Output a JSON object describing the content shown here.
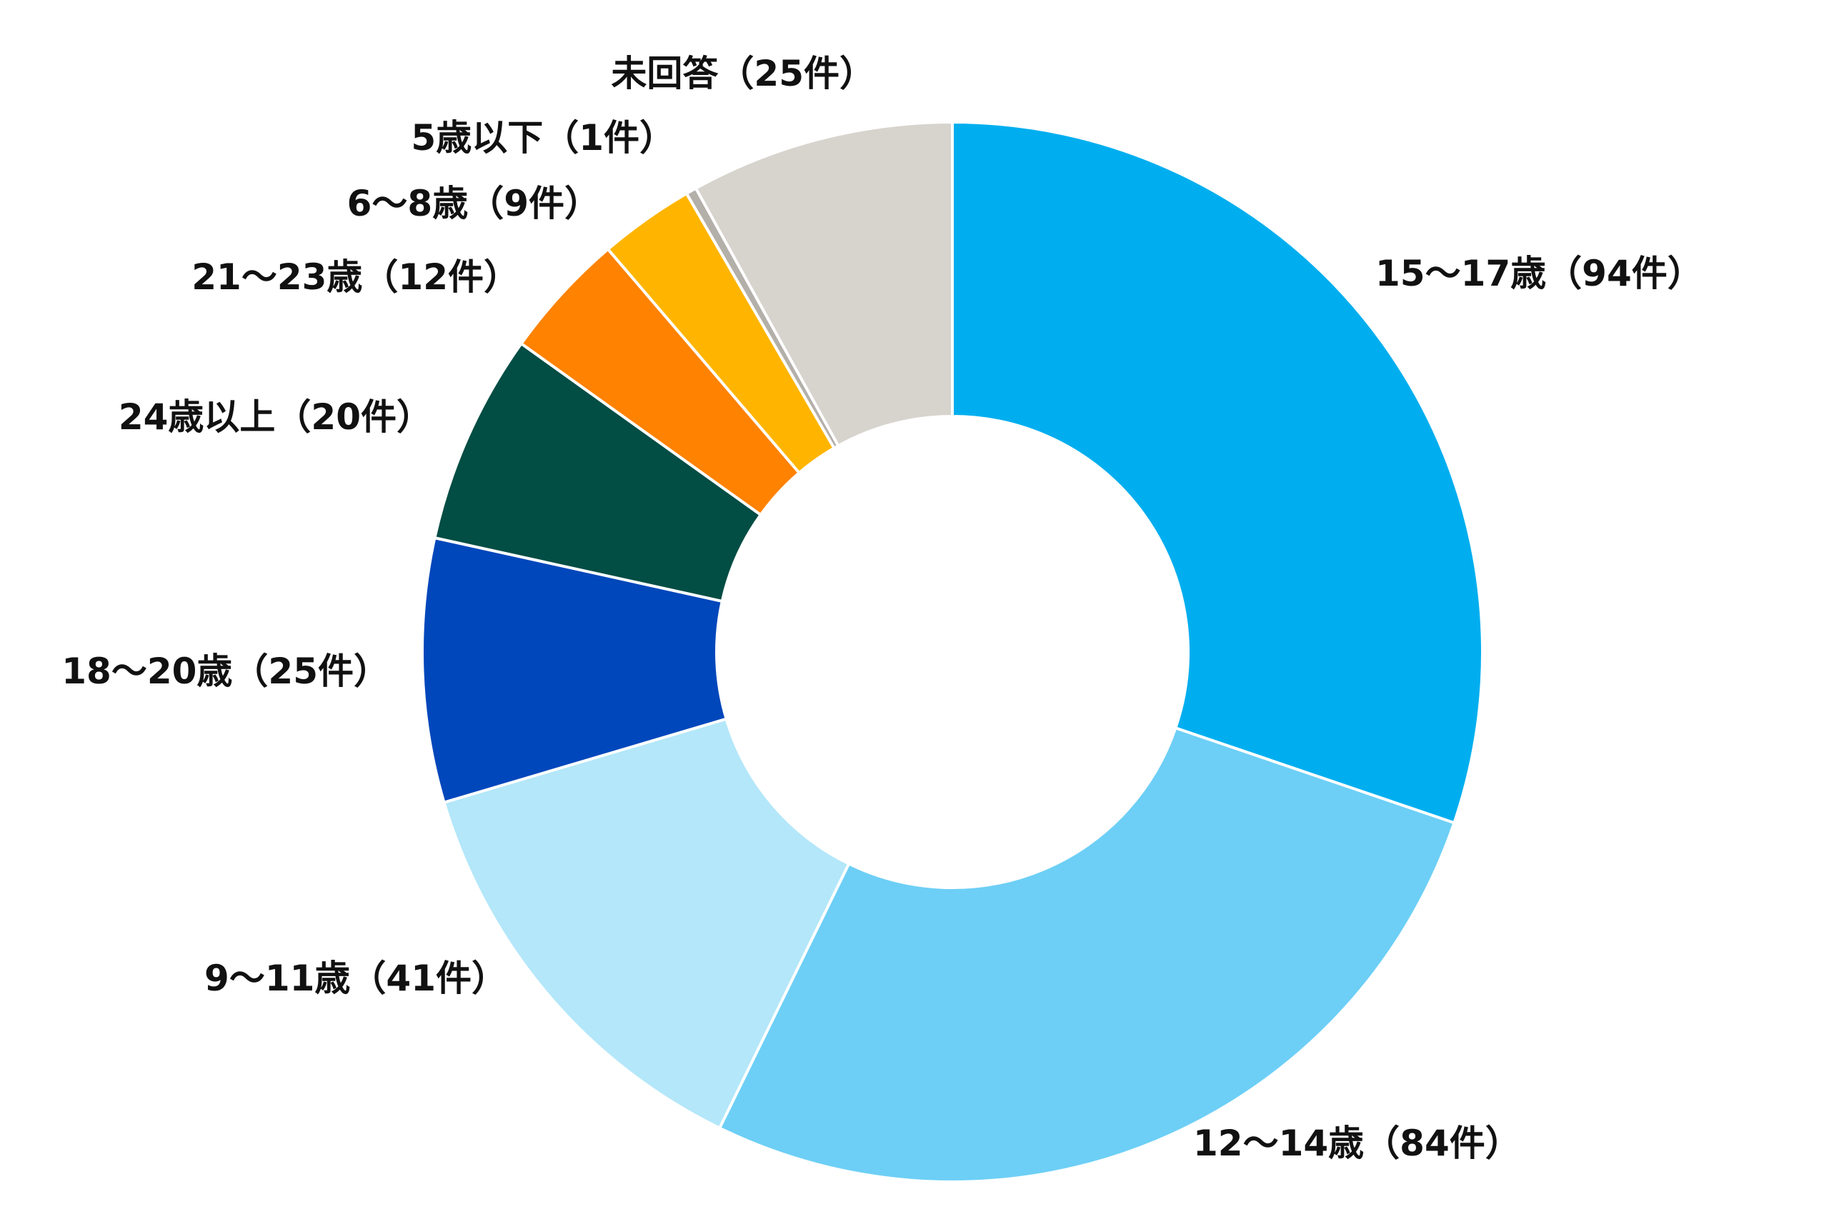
{
  "chart_data": {
    "type": "pie",
    "variant": "donut",
    "title": "",
    "start_position": "12 o'clock",
    "direction": "clockwise",
    "slice_border_color": "#ffffff",
    "slices": [
      {
        "label": "15〜17歳（94件）",
        "category": "15〜17歳",
        "value": 94,
        "color": "#00AEEF"
      },
      {
        "label": "12〜14歳（84件）",
        "category": "12〜14歳",
        "value": 84,
        "color": "#6DCFF6"
      },
      {
        "label": "9〜11歳（41件）",
        "category": "9〜11歳",
        "value": 41,
        "color": "#B3E7F9"
      },
      {
        "label": "18〜20歳（25件）",
        "category": "18〜20歳",
        "value": 25,
        "color": "#0047BB"
      },
      {
        "label": "24歳以上（20件）",
        "category": "24歳以上",
        "value": 20,
        "color": "#024D44"
      },
      {
        "label": "21〜23歳（12件）",
        "category": "21〜23歳",
        "value": 12,
        "color": "#FF8200"
      },
      {
        "label": "6〜8歳（9件）",
        "category": "6〜8歳",
        "value": 9,
        "color": "#FFB500"
      },
      {
        "label": "5歳以下（1件）",
        "category": "5歳以下",
        "value": 1,
        "color": "#B3AFA9"
      },
      {
        "label": "未回答（25件）",
        "category": "未回答",
        "value": 25,
        "color": "#D7D3CD"
      }
    ]
  }
}
